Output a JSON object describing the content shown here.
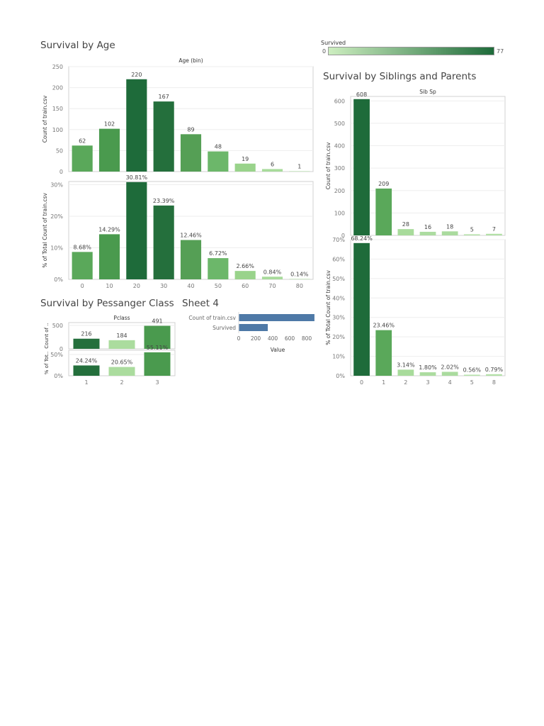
{
  "legend": {
    "label": "Survived",
    "min": "0",
    "max": "77",
    "color_low": "#cdeec0",
    "color_high": "#1e6b3a"
  },
  "sheet4": {
    "title": "Sheet 4",
    "chart_data": {
      "type": "bar",
      "orientation": "horizontal",
      "categories": [
        "Count of train.csv",
        "Survived"
      ],
      "values": [
        891,
        342
      ],
      "xlabel": "Value",
      "xticks": [
        "0",
        "200",
        "400",
        "600",
        "800"
      ],
      "xlim": [
        0,
        900
      ],
      "color": "#4e79a7"
    }
  },
  "chart_data": [
    {
      "id": "age",
      "type": "bar",
      "title": "Survival by Age",
      "header": "Age (bin)",
      "categories": [
        "0",
        "10",
        "20",
        "30",
        "40",
        "50",
        "60",
        "70",
        "80"
      ],
      "panels": [
        {
          "ylabel": "Count of train.csv",
          "values": [
            62,
            102,
            220,
            167,
            89,
            48,
            19,
            6,
            1
          ],
          "labels": [
            "62",
            "102",
            "220",
            "167",
            "89",
            "48",
            "19",
            "6",
            "1"
          ],
          "yticks": [
            "0",
            "50",
            "100",
            "150",
            "200",
            "250"
          ],
          "ylim": [
            0,
            250
          ]
        },
        {
          "ylabel": "% of Total Count of train.csv",
          "values": [
            8.68,
            14.29,
            30.81,
            23.39,
            12.46,
            6.72,
            2.66,
            0.84,
            0.14
          ],
          "labels": [
            "8.68%",
            "14.29%",
            "30.81%",
            "23.39%",
            "12.46%",
            "6.72%",
            "2.66%",
            "0.84%",
            "0.14%"
          ],
          "yticks": [
            "0%",
            "10%",
            "20%",
            "30%"
          ],
          "ylim": [
            0,
            31
          ]
        }
      ],
      "colors": [
        "#5aa85a",
        "#4a9a4e",
        "#1e6b3a",
        "#246f3c",
        "#559f55",
        "#6cb76a",
        "#99d38b",
        "#a8db9b",
        "#b4e0a8"
      ]
    },
    {
      "id": "sibsp",
      "type": "bar",
      "title": "Survival by Siblings and Parents",
      "header": "Sib Sp",
      "categories": [
        "0",
        "1",
        "2",
        "3",
        "4",
        "5",
        "8"
      ],
      "panels": [
        {
          "ylabel": "Count of train.csv",
          "values": [
            608,
            209,
            28,
            16,
            18,
            5,
            7
          ],
          "labels": [
            "608",
            "209",
            "28",
            "16",
            "18",
            "5",
            "7"
          ],
          "yticks": [
            "0",
            "100",
            "200",
            "300",
            "400",
            "500",
            "600"
          ],
          "ylim": [
            0,
            620
          ]
        },
        {
          "ylabel": "% of Total Count of train.csv",
          "values": [
            68.24,
            23.46,
            3.14,
            1.8,
            2.02,
            0.56,
            0.79
          ],
          "labels": [
            "68.24%",
            "23.46%",
            "3.14%",
            "1.80%",
            "2.02%",
            "0.56%",
            "0.79%"
          ],
          "yticks": [
            "0%",
            "10%",
            "20%",
            "30%",
            "40%",
            "50%",
            "60%",
            "70%"
          ],
          "ylim": [
            0,
            70
          ]
        }
      ],
      "colors": [
        "#1e6b3a",
        "#5aa85a",
        "#a8db9b",
        "#acdca0",
        "#aadb9e",
        "#b6e2aa",
        "#b2e0a6"
      ]
    },
    {
      "id": "pclass",
      "type": "bar",
      "title": "Survival by Pessanger Class",
      "header": "Pclass",
      "categories": [
        "1",
        "2",
        "3"
      ],
      "panels": [
        {
          "ylabel": "Count of ..",
          "values": [
            216,
            184,
            491
          ],
          "labels": [
            "216",
            "184",
            "491"
          ],
          "yticks": [
            "0",
            "500"
          ],
          "ylim": [
            0,
            560
          ]
        },
        {
          "ylabel": "% of Tot..",
          "values": [
            24.24,
            20.65,
            55.11
          ],
          "labels": [
            "24.24%",
            "20.65%",
            "55.11%"
          ],
          "yticks": [
            "0%",
            "50%"
          ],
          "ylim": [
            0,
            60
          ]
        }
      ],
      "colors": [
        "#246f3c",
        "#abdc9e",
        "#4a9a4e"
      ]
    }
  ]
}
